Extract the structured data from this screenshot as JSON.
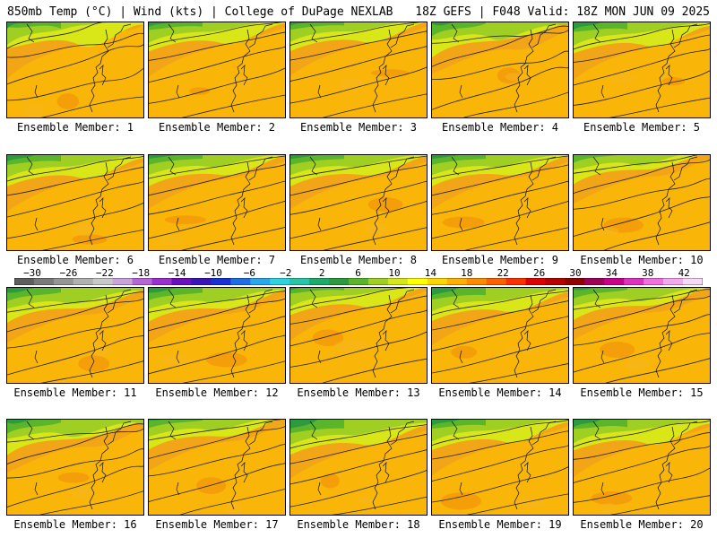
{
  "header": {
    "left": "850mb Temp (°C) | Wind (kts) | College of DuPage NEXLAB",
    "right": "18Z GEFS | F048 Valid: 18Z MON JUN 09 2025"
  },
  "members": [
    {
      "label": "Ensemble Member: 1"
    },
    {
      "label": "Ensemble Member: 2"
    },
    {
      "label": "Ensemble Member: 3"
    },
    {
      "label": "Ensemble Member: 4"
    },
    {
      "label": "Ensemble Member: 5"
    },
    {
      "label": "Ensemble Member: 6"
    },
    {
      "label": "Ensemble Member: 7"
    },
    {
      "label": "Ensemble Member: 8"
    },
    {
      "label": "Ensemble Member: 9"
    },
    {
      "label": "Ensemble Member: 10"
    },
    {
      "label": "Ensemble Member: 11"
    },
    {
      "label": "Ensemble Member: 12"
    },
    {
      "label": "Ensemble Member: 13"
    },
    {
      "label": "Ensemble Member: 14"
    },
    {
      "label": "Ensemble Member: 15"
    },
    {
      "label": "Ensemble Member: 16"
    },
    {
      "label": "Ensemble Member: 17"
    },
    {
      "label": "Ensemble Member: 18"
    },
    {
      "label": "Ensemble Member: 19"
    },
    {
      "label": "Ensemble Member: 20"
    }
  ],
  "colorbar": {
    "labels": [
      "−30",
      "−26",
      "−22",
      "−18",
      "−14",
      "−10",
      "−6",
      "−2",
      "2",
      "6",
      "10",
      "14",
      "18",
      "22",
      "26",
      "30",
      "34",
      "38",
      "42"
    ],
    "colors": [
      "#5e5e5e",
      "#7a7a7a",
      "#959595",
      "#b0b0b0",
      "#c8c8c8",
      "#c9a3d9",
      "#b566d6",
      "#9b2fcf",
      "#6a0fc0",
      "#3a16b8",
      "#1b2fd6",
      "#1f6ee6",
      "#2aa8ee",
      "#2ed3e0",
      "#27c6a6",
      "#1daa6b",
      "#2b9b3e",
      "#5bb52a",
      "#9fcf22",
      "#d6e617",
      "#ffff00",
      "#ffd700",
      "#ffb000",
      "#ff8c00",
      "#ff6000",
      "#ff3000",
      "#e00000",
      "#b80000",
      "#900000",
      "#a0005a",
      "#c8008c",
      "#e030c0",
      "#f070e0",
      "#f4a8f0",
      "#f8d8f8"
    ]
  }
}
